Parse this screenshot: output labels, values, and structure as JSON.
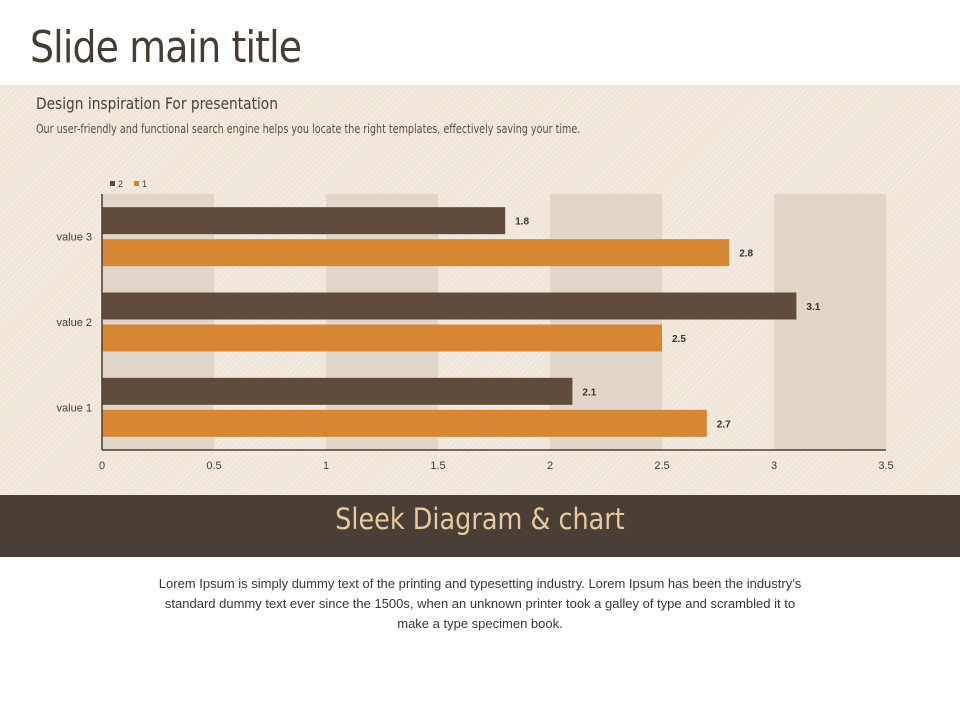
{
  "slide": {
    "title": "Slide main title",
    "subtitle": "Design inspiration For presentation",
    "description": "Our user-friendly and functional search engine helps you locate the right templates, effectively saving your time.",
    "footer_title": "Sleek Diagram & chart",
    "body": "Lorem Ipsum is simply dummy text of the printing and typesetting industry. Lorem Ipsum has been the industry's standard dummy text ever since the 1500s, when an unknown printer took a galley of type and scrambled it to make a type specimen book."
  },
  "chart_data": {
    "type": "bar",
    "orientation": "horizontal",
    "categories": [
      "value 1",
      "value 2",
      "value 3"
    ],
    "series": [
      {
        "name": "2",
        "values": [
          2.1,
          3.1,
          1.8
        ],
        "color": "#5f4c3f"
      },
      {
        "name": "1",
        "values": [
          2.7,
          2.5,
          2.8
        ],
        "color": "#d68733"
      }
    ],
    "xlim": [
      0,
      3.5
    ],
    "xticks": [
      "0",
      "0.5",
      "1",
      "1.5",
      "2",
      "2.5",
      "3",
      "3.5"
    ],
    "data_labels": true,
    "legend": "top-left",
    "alternating_column_bands": true,
    "band_color": "#e1d6c7"
  }
}
